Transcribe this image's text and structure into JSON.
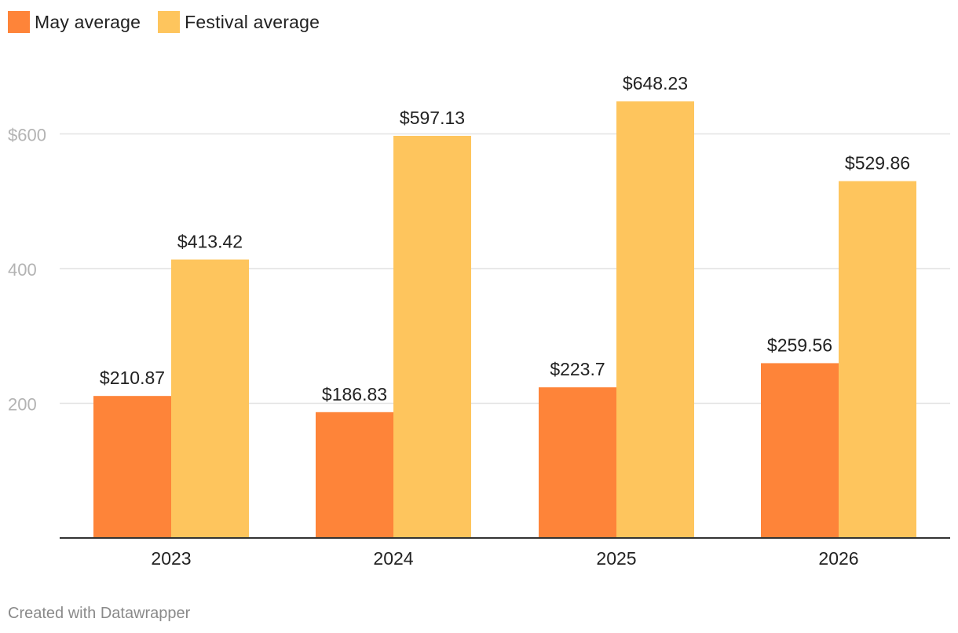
{
  "legend": {
    "items": [
      {
        "label": "May average",
        "color": "#fe8439"
      },
      {
        "label": "Festival average",
        "color": "#fec55d"
      }
    ]
  },
  "chart_data": {
    "type": "bar",
    "categories": [
      "2023",
      "2024",
      "2025",
      "2026"
    ],
    "series": [
      {
        "name": "May average",
        "color": "#fe8439",
        "values": [
          210.87,
          186.83,
          223.7,
          259.56
        ],
        "labels": [
          "$210.87",
          "$186.83",
          "$223.7",
          "$259.56"
        ]
      },
      {
        "name": "Festival average",
        "color": "#fec55d",
        "values": [
          413.42,
          597.13,
          648.23,
          529.86
        ],
        "labels": [
          "$413.42",
          "$597.13",
          "$648.23",
          "$529.86"
        ]
      }
    ],
    "y_ticks": [
      200,
      400,
      600
    ],
    "y_tick_labels": [
      "200",
      "400",
      "$600"
    ],
    "ylim": [
      0,
      600
    ],
    "grid": true,
    "legend_position": "top-left",
    "title": "",
    "xlabel": "",
    "ylabel": ""
  },
  "footer": {
    "credit": "Created with Datawrapper"
  }
}
